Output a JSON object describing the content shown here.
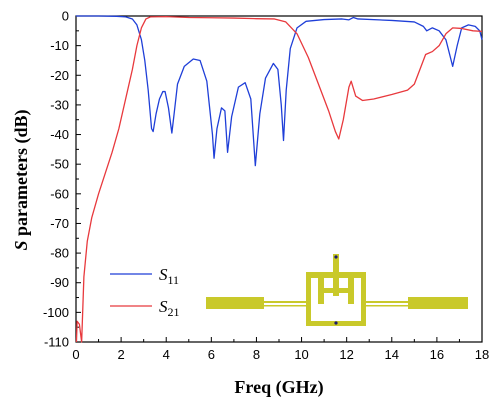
{
  "chart_data": {
    "type": "line",
    "xlabel": "Freq (GHz)",
    "ylabel_italic": "S",
    "ylabel_rest": " parameters (dB)",
    "xlim": [
      0,
      18
    ],
    "ylim": [
      -110,
      0
    ],
    "x_ticks": [
      0,
      2,
      4,
      6,
      8,
      10,
      12,
      14,
      16,
      18
    ],
    "y_ticks": [
      0,
      -10,
      -20,
      -30,
      -40,
      -50,
      -60,
      -70,
      -80,
      -90,
      -100,
      -110
    ],
    "legend_position": "bottom-left",
    "series": [
      {
        "name": "S11",
        "name_main": "S",
        "name_sub": "11",
        "color": "#1f3fd8",
        "points": [
          [
            0.0,
            0.0
          ],
          [
            1.0,
            0.0
          ],
          [
            1.8,
            -0.1
          ],
          [
            2.2,
            -0.3
          ],
          [
            2.5,
            -1.0
          ],
          [
            2.7,
            -3.0
          ],
          [
            2.9,
            -8.0
          ],
          [
            3.05,
            -15.0
          ],
          [
            3.2,
            -25.0
          ],
          [
            3.35,
            -38.0
          ],
          [
            3.42,
            -39.0
          ],
          [
            3.55,
            -33.0
          ],
          [
            3.7,
            -28.0
          ],
          [
            3.85,
            -25.5
          ],
          [
            3.95,
            -25.5
          ],
          [
            4.1,
            -31.0
          ],
          [
            4.25,
            -39.5
          ],
          [
            4.35,
            -33.0
          ],
          [
            4.5,
            -23.0
          ],
          [
            4.8,
            -17.0
          ],
          [
            5.2,
            -14.5
          ],
          [
            5.5,
            -15.0
          ],
          [
            5.8,
            -22.0
          ],
          [
            6.05,
            -40.0
          ],
          [
            6.12,
            -48.0
          ],
          [
            6.25,
            -38.0
          ],
          [
            6.45,
            -31.0
          ],
          [
            6.6,
            -32.0
          ],
          [
            6.72,
            -46.0
          ],
          [
            6.9,
            -34.0
          ],
          [
            7.2,
            -24.0
          ],
          [
            7.5,
            -22.5
          ],
          [
            7.75,
            -28.0
          ],
          [
            7.95,
            -50.5
          ],
          [
            8.15,
            -33.0
          ],
          [
            8.4,
            -21.0
          ],
          [
            8.75,
            -16.0
          ],
          [
            8.95,
            -18.0
          ],
          [
            9.1,
            -30.0
          ],
          [
            9.2,
            -42.0
          ],
          [
            9.32,
            -25.0
          ],
          [
            9.5,
            -11.0
          ],
          [
            9.8,
            -4.0
          ],
          [
            10.2,
            -1.8
          ],
          [
            11.0,
            -1.2
          ],
          [
            11.8,
            -1.0
          ],
          [
            12.1,
            -1.3
          ],
          [
            12.3,
            -0.5
          ],
          [
            12.5,
            -1.0
          ],
          [
            14.0,
            -1.5
          ],
          [
            15.0,
            -2.0
          ],
          [
            15.4,
            -3.5
          ],
          [
            15.55,
            -5.0
          ],
          [
            15.8,
            -4.0
          ],
          [
            16.1,
            -5.0
          ],
          [
            16.4,
            -8.0
          ],
          [
            16.7,
            -17.0
          ],
          [
            16.9,
            -10.0
          ],
          [
            17.1,
            -4.0
          ],
          [
            17.4,
            -3.0
          ],
          [
            17.7,
            -3.5
          ],
          [
            17.9,
            -5.0
          ],
          [
            18.0,
            -8.0
          ]
        ]
      },
      {
        "name": "S21",
        "name_main": "S",
        "name_sub": "21",
        "color": "#e8393d",
        "points": [
          [
            0.02,
            -110.0
          ],
          [
            0.05,
            -103.0
          ],
          [
            0.15,
            -104.0
          ],
          [
            0.25,
            -110.0
          ],
          [
            0.35,
            -88.0
          ],
          [
            0.5,
            -76.0
          ],
          [
            0.7,
            -68.0
          ],
          [
            1.0,
            -60.0
          ],
          [
            1.3,
            -53.0
          ],
          [
            1.6,
            -46.0
          ],
          [
            1.9,
            -38.0
          ],
          [
            2.2,
            -28.0
          ],
          [
            2.5,
            -18.0
          ],
          [
            2.7,
            -10.0
          ],
          [
            2.9,
            -4.0
          ],
          [
            3.1,
            -1.0
          ],
          [
            3.3,
            -0.3
          ],
          [
            4.0,
            -0.2
          ],
          [
            5.0,
            -0.5
          ],
          [
            6.0,
            -0.6
          ],
          [
            7.0,
            -0.7
          ],
          [
            8.0,
            -0.9
          ],
          [
            8.8,
            -1.0
          ],
          [
            9.3,
            -2.0
          ],
          [
            9.8,
            -6.0
          ],
          [
            10.3,
            -14.0
          ],
          [
            10.8,
            -24.0
          ],
          [
            11.2,
            -32.0
          ],
          [
            11.5,
            -39.0
          ],
          [
            11.65,
            -41.5
          ],
          [
            11.85,
            -35.0
          ],
          [
            12.1,
            -24.0
          ],
          [
            12.2,
            -22.0
          ],
          [
            12.4,
            -27.0
          ],
          [
            12.7,
            -28.5
          ],
          [
            13.2,
            -28.0
          ],
          [
            14.0,
            -26.5
          ],
          [
            14.7,
            -25.0
          ],
          [
            15.0,
            -23.0
          ],
          [
            15.3,
            -17.0
          ],
          [
            15.5,
            -13.0
          ],
          [
            15.8,
            -12.0
          ],
          [
            16.1,
            -10.0
          ],
          [
            16.4,
            -6.0
          ],
          [
            16.7,
            -4.0
          ],
          [
            17.1,
            -4.2
          ],
          [
            17.6,
            -5.0
          ],
          [
            18.0,
            -5.2
          ]
        ]
      }
    ]
  },
  "inset": {
    "description_color": "#c9c92a",
    "port_color": "#b0b028"
  }
}
